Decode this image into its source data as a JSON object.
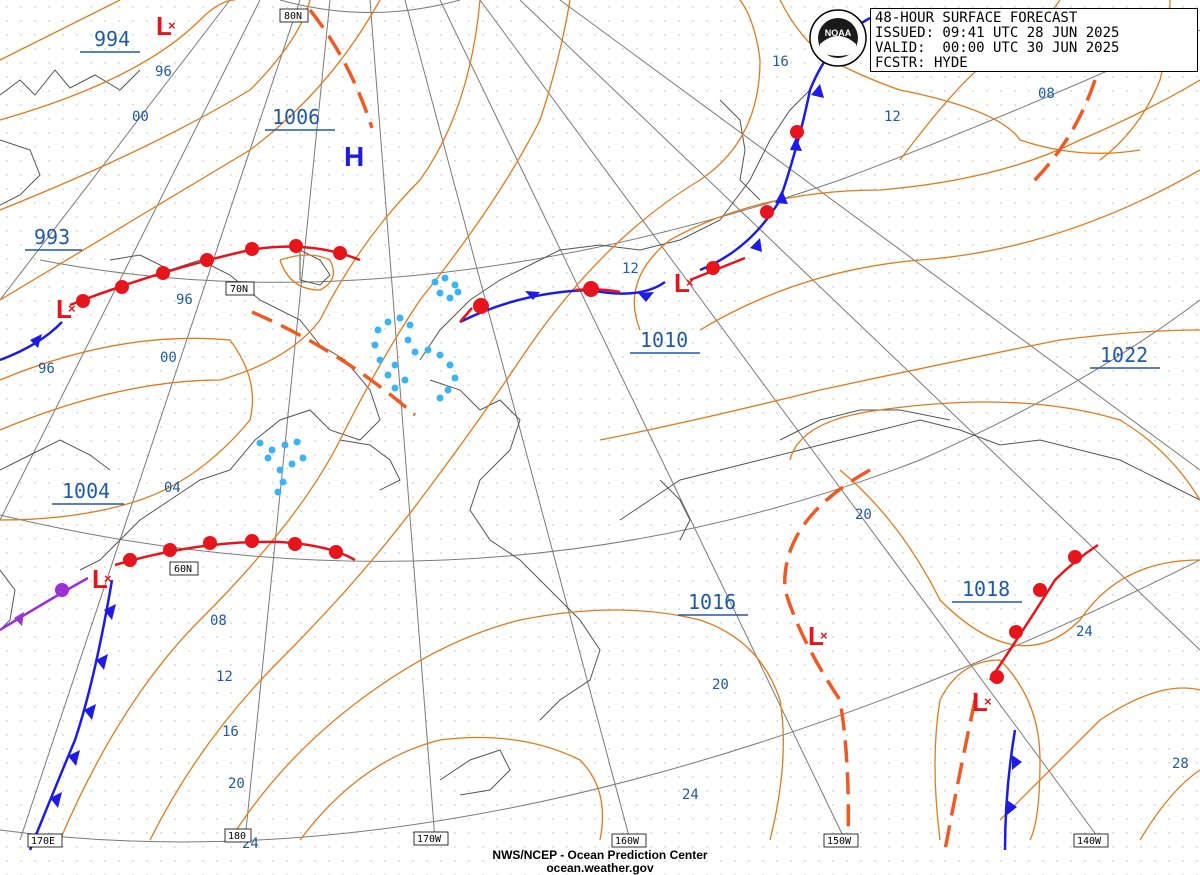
{
  "header": {
    "line1": "48-HOUR SURFACE FORECAST",
    "line2": "ISSUED: 09:41 UTC 28 JUN 2025",
    "line3": "VALID:  00:00 UTC 30 JUN 2025",
    "line4": "FCSTR: HYDE"
  },
  "logo": {
    "text": "NOAA"
  },
  "footer": {
    "line1": "NWS/NCEP - Ocean Prediction Center",
    "line2": "ocean.weather.gov"
  },
  "gridlabels": {
    "lat80": "80N",
    "lat70": "70N",
    "lat60": "60N",
    "lon170e": "170E",
    "lon180": "180",
    "lon170w": "170W",
    "lon160w": "160W",
    "lon150w": "150W",
    "lon140w": "140W"
  },
  "pressures": {
    "p994": "994",
    "p1006": "1006",
    "p993": "993",
    "p1004": "1004",
    "p1010": "1010",
    "p1022": "1022",
    "p1016": "1016",
    "p1018": "1018"
  },
  "isobar_labels": {
    "a96": "96",
    "a00": "00",
    "b96": "96",
    "b00": "00",
    "c96": "96",
    "d04": "04",
    "e08": "08",
    "e12": "12",
    "e16": "16",
    "e20": "20",
    "e24": "24",
    "f12": "12",
    "f16": "16",
    "g12": "12",
    "g08": "08",
    "h20": "20",
    "i20": "20",
    "i24": "24",
    "j24": "24",
    "k28": "28"
  },
  "symbols": {
    "high": "H",
    "low": "L"
  },
  "colors": {
    "isobar": "#e07b1a",
    "warm_front": "#e8141b",
    "cold_front": "#1c1ce6",
    "occluded": "#9b30d6",
    "trough": "#f05a22",
    "precip": "#3ab4f2",
    "label": "#1e5aa8",
    "coast": "#555555",
    "grid": "#b0b0b0"
  }
}
